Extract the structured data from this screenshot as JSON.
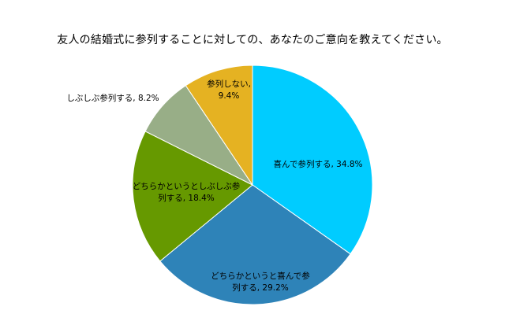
{
  "chart_data": {
    "type": "pie",
    "title": "友人の結婚式に参列することに対しての、あなたのご意向を教えてください。",
    "slices": [
      {
        "label": "喜んで参列する",
        "value": 34.8,
        "display": "34.8%",
        "color": "#00CCFF",
        "label_lines": [
          "喜んで参列する, 34.8%"
        ]
      },
      {
        "label": "どちらかというと喜んで参列する",
        "value": 29.2,
        "display": "29.2%",
        "color": "#2E83B8",
        "label_lines": [
          "どちらかというと喜んで参",
          "列する, 29.2%"
        ]
      },
      {
        "label": "どちらかというとしぶしぶ参列する",
        "value": 18.4,
        "display": "18.4%",
        "color": "#669900",
        "label_lines": [
          "どちらかというとしぶしぶ参",
          "列する, 18.4%"
        ]
      },
      {
        "label": "しぶしぶ参列する",
        "value": 8.2,
        "display": "8.2%",
        "color": "#98AE87",
        "label_lines": [
          "しぶしぶ参列する, 8.2%"
        ]
      },
      {
        "label": "参列しない",
        "value": 9.4,
        "display": "9.4%",
        "color": "#E5B222",
        "label_lines": [
          "参列しない,",
          "9.4%"
        ]
      }
    ]
  }
}
